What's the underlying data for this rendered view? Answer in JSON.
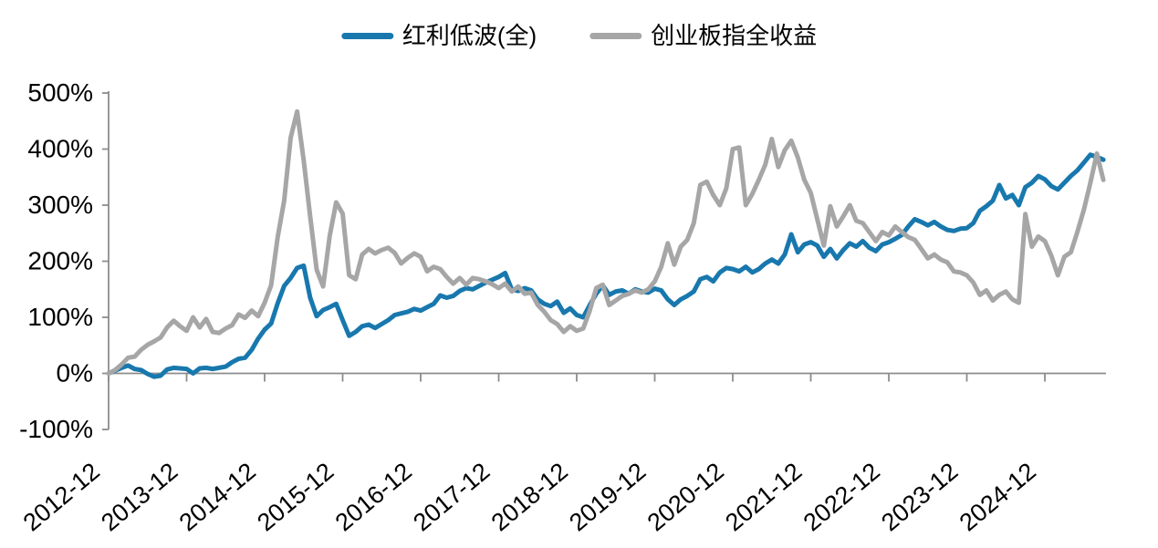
{
  "page": {
    "background": "#ffffff"
  },
  "chart_data": {
    "type": "line",
    "title": "",
    "xlabel": "",
    "ylabel": "",
    "grid": false,
    "legend_position": "top-center",
    "x_axis": {
      "start": "2012-12",
      "step_months": 1,
      "tick_labels": [
        "2012-12",
        "2013-12",
        "2014-12",
        "2015-12",
        "2016-12",
        "2017-12",
        "2018-12",
        "2019-12",
        "2020-12",
        "2021-12",
        "2022-12",
        "2023-12",
        "2024-12"
      ]
    },
    "y_axis": {
      "min": -100,
      "max": 500,
      "unit": "%",
      "tick_labels": [
        "-100%",
        "0%",
        "100%",
        "200%",
        "300%",
        "400%",
        "500%"
      ]
    },
    "axis_color": "#8c8c8c",
    "series": [
      {
        "name": "红利低波(全)",
        "color": "#1878AE",
        "values": [
          0,
          5,
          10,
          14,
          8,
          6,
          -1,
          -6,
          -4,
          7,
          10,
          9,
          8,
          0,
          9,
          10,
          8,
          10,
          12,
          20,
          26,
          28,
          42,
          62,
          78,
          89,
          125,
          156,
          170,
          188,
          192,
          135,
          102,
          113,
          118,
          124,
          95,
          67,
          74,
          84,
          87,
          81,
          88,
          95,
          104,
          107,
          110,
          115,
          112,
          118,
          124,
          139,
          135,
          138,
          147,
          152,
          150,
          156,
          162,
          167,
          172,
          179,
          150,
          147,
          152,
          148,
          132,
          124,
          120,
          128,
          108,
          116,
          104,
          100,
          122,
          142,
          157,
          140,
          146,
          148,
          142,
          150,
          146,
          144,
          151,
          148,
          132,
          122,
          132,
          138,
          146,
          168,
          172,
          164,
          180,
          188,
          186,
          182,
          190,
          180,
          186,
          196,
          203,
          196,
          212,
          248,
          216,
          230,
          234,
          228,
          208,
          222,
          205,
          220,
          232,
          226,
          236,
          224,
          218,
          230,
          234,
          240,
          247,
          262,
          275,
          270,
          264,
          270,
          262,
          256,
          254,
          258,
          259,
          268,
          290,
          298,
          308,
          336,
          312,
          318,
          300,
          332,
          340,
          352,
          346,
          334,
          328,
          340,
          352,
          362,
          376,
          390,
          386,
          381
        ]
      },
      {
        "name": "创业板指全收益",
        "color": "#A6A6A6",
        "values": [
          0,
          6,
          16,
          28,
          30,
          42,
          51,
          57,
          64,
          82,
          94,
          84,
          76,
          100,
          82,
          97,
          74,
          72,
          80,
          86,
          105,
          99,
          112,
          102,
          126,
          157,
          243,
          308,
          420,
          467,
          380,
          280,
          185,
          155,
          245,
          305,
          285,
          175,
          168,
          212,
          222,
          214,
          220,
          224,
          215,
          196,
          206,
          214,
          208,
          182,
          190,
          186,
          172,
          160,
          170,
          158,
          170,
          168,
          164,
          159,
          152,
          160,
          146,
          155,
          142,
          144,
          122,
          110,
          95,
          88,
          74,
          84,
          76,
          80,
          112,
          152,
          158,
          122,
          130,
          138,
          142,
          148,
          144,
          150,
          164,
          190,
          232,
          194,
          226,
          238,
          268,
          336,
          342,
          318,
          300,
          330,
          400,
          403,
          300,
          320,
          345,
          372,
          418,
          368,
          398,
          415,
          385,
          345,
          322,
          275,
          228,
          298,
          262,
          280,
          300,
          272,
          268,
          252,
          236,
          252,
          246,
          262,
          252,
          243,
          238,
          222,
          205,
          212,
          203,
          198,
          182,
          180,
          175,
          162,
          140,
          148,
          130,
          140,
          146,
          132,
          126,
          284,
          226,
          244,
          236,
          210,
          175,
          208,
          216,
          252,
          292,
          340,
          392,
          345
        ]
      }
    ]
  }
}
